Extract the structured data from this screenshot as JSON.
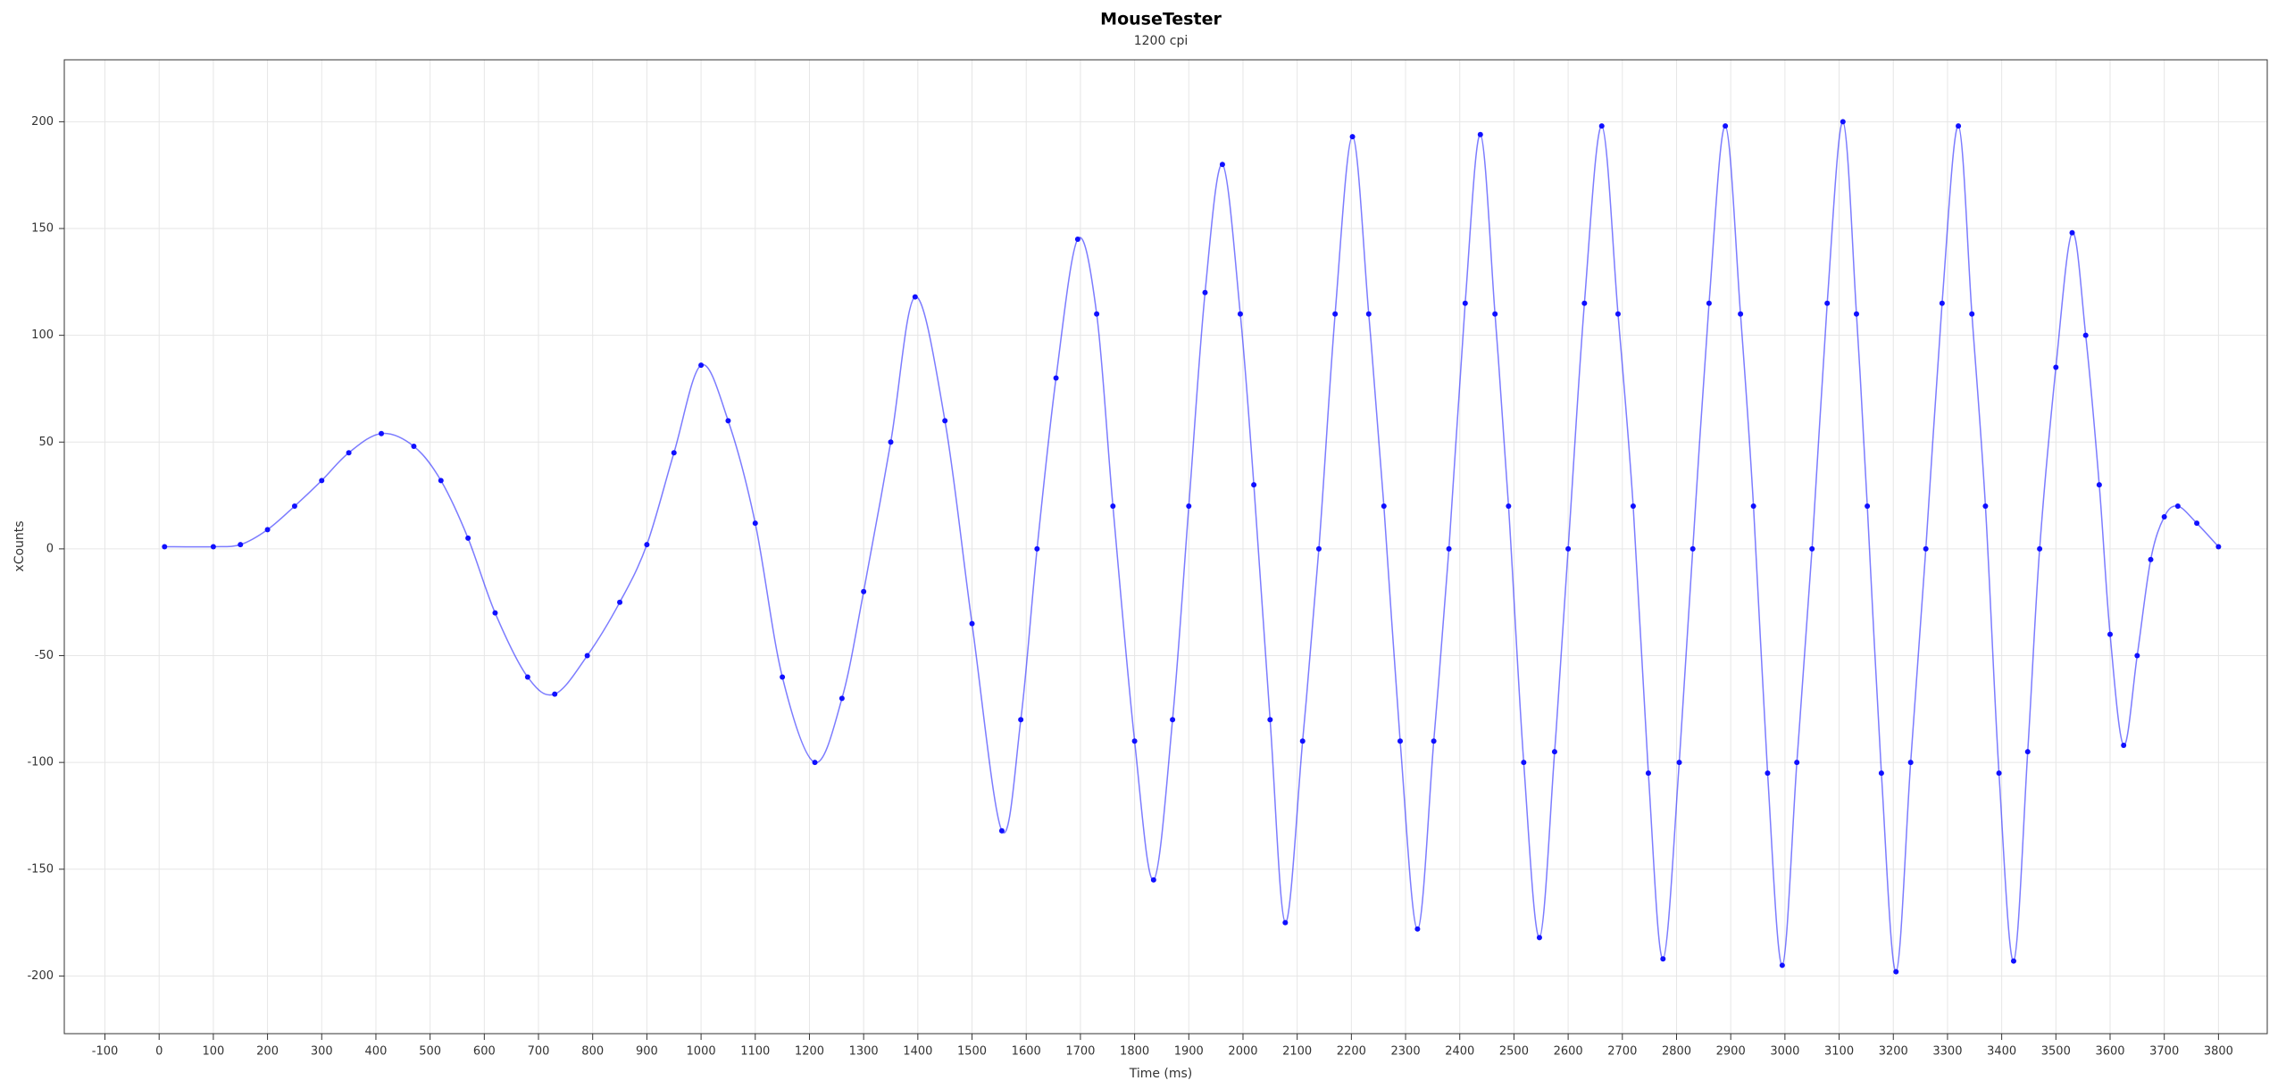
{
  "chart_data": {
    "type": "line",
    "title": "MouseTester",
    "subtitle": "1200 cpi",
    "x_label": "Time (ms)",
    "y_label": "xCounts",
    "xlim": [
      -175,
      3890
    ],
    "ylim": [
      -227,
      229
    ],
    "xticks": [
      -100,
      0,
      100,
      200,
      300,
      400,
      500,
      600,
      700,
      800,
      900,
      1000,
      1100,
      1200,
      1300,
      1400,
      1500,
      1600,
      1700,
      1800,
      1900,
      2000,
      2100,
      2200,
      2300,
      2400,
      2500,
      2600,
      2700,
      2800,
      2900,
      3000,
      3100,
      3200,
      3300,
      3400,
      3500,
      3600,
      3700,
      3800
    ],
    "yticks": [
      -200,
      -150,
      -100,
      -50,
      0,
      50,
      100,
      150,
      200
    ],
    "grid": true,
    "series": [
      {
        "color": "#1010ff",
        "x": [
          10,
          100,
          150,
          200,
          250,
          300,
          350,
          410,
          470,
          520,
          570,
          620,
          680,
          730,
          790,
          850,
          900,
          950,
          1000,
          1050,
          1100,
          1150,
          1210,
          1260,
          1300,
          1350,
          1395,
          1450,
          1500,
          1555,
          1590,
          1620,
          1655,
          1695,
          1730,
          1760,
          1800,
          1835,
          1870,
          1900,
          1930,
          1962,
          1995,
          2020,
          2050,
          2078,
          2110,
          2140,
          2170,
          2202,
          2232,
          2260,
          2290,
          2322,
          2352,
          2380,
          2410,
          2438,
          2465,
          2490,
          2518,
          2547,
          2575,
          2600,
          2630,
          2662,
          2692,
          2720,
          2748,
          2775,
          2805,
          2830,
          2860,
          2890,
          2918,
          2942,
          2968,
          2995,
          3022,
          3050,
          3078,
          3107,
          3132,
          3152,
          3178,
          3205,
          3232,
          3260,
          3290,
          3320,
          3345,
          3370,
          3395,
          3422,
          3448,
          3470,
          3500,
          3530,
          3555,
          3580,
          3600,
          3625,
          3650,
          3675,
          3700,
          3725,
          3760,
          3800
        ],
        "values": [
          1,
          1,
          2,
          9,
          20,
          32,
          45,
          54,
          48,
          32,
          5,
          -30,
          -60,
          -68,
          -50,
          -25,
          2,
          45,
          86,
          60,
          12,
          -60,
          -100,
          -70,
          -20,
          50,
          118,
          60,
          -35,
          -132,
          -80,
          0,
          80,
          145,
          110,
          20,
          -90,
          -155,
          -80,
          20,
          120,
          180,
          110,
          30,
          -80,
          -175,
          -90,
          0,
          110,
          193,
          110,
          20,
          -90,
          -178,
          -90,
          0,
          115,
          194,
          110,
          20,
          -100,
          -182,
          -95,
          0,
          115,
          198,
          110,
          20,
          -105,
          -192,
          -100,
          0,
          115,
          198,
          110,
          20,
          -105,
          -195,
          -100,
          0,
          115,
          200,
          110,
          20,
          -105,
          -198,
          -100,
          0,
          115,
          198,
          110,
          20,
          -105,
          -193,
          -95,
          0,
          85,
          148,
          100,
          30,
          -40,
          -92,
          -50,
          -5,
          15,
          20,
          12,
          1
        ]
      }
    ]
  }
}
